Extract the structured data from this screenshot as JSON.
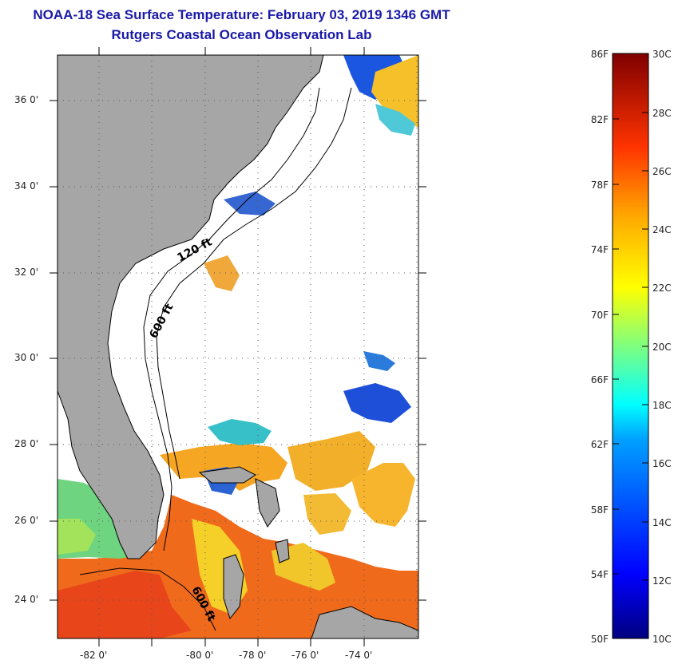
{
  "header": {
    "title": "NOAA-18 Sea Surface Temperature:  February 03, 2019 1346 GMT",
    "subtitle": "Rutgers Coastal Ocean Observation Lab"
  },
  "map": {
    "lat_labels": [
      "36 0'",
      "34 0'",
      "32 0'",
      "30 0'",
      "28 0'",
      "26 0'",
      "24 0'"
    ],
    "lon_labels": [
      "-82 0'",
      "-80 0'",
      "-78 0'",
      "-76 0'",
      "-74 0'"
    ],
    "contour_labels": [
      "120 ft",
      "600 ft",
      "600 ft"
    ],
    "land_color": "#a6a6a6",
    "cloud_color": "#ffffff"
  },
  "colorbar": {
    "fahrenheit_labels": [
      "86F",
      "82F",
      "78F",
      "74F",
      "70F",
      "66F",
      "62F",
      "58F",
      "54F",
      "50F"
    ],
    "celsius_labels": [
      "30C",
      "28C",
      "26C",
      "24C",
      "22C",
      "20C",
      "18C",
      "16C",
      "14C",
      "12C",
      "10C"
    ],
    "range_f": [
      50,
      86
    ],
    "range_c": [
      10,
      30
    ],
    "colors": [
      "#00007f",
      "#0000ff",
      "#007fff",
      "#00ffff",
      "#7fff7f",
      "#ffff00",
      "#ff7f00",
      "#ff0000",
      "#7f0000"
    ]
  }
}
